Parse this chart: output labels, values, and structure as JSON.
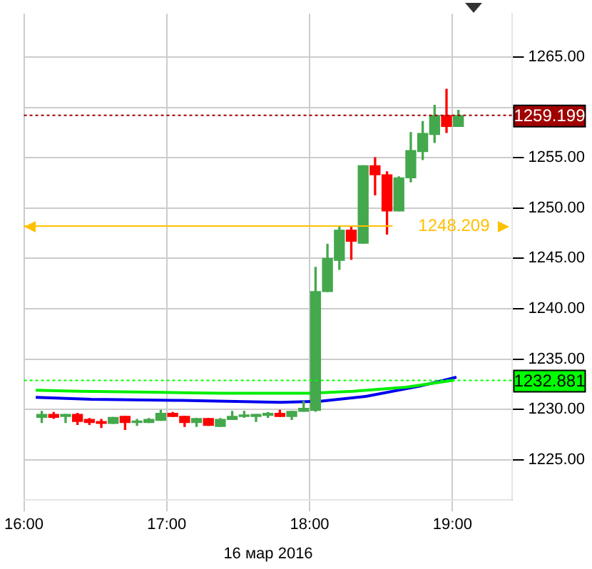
{
  "chart_data": {
    "type": "candlestick",
    "xlabel": "16 мар 2016",
    "x": [
      16.125,
      16.2083,
      16.2917,
      16.375,
      16.4583,
      16.5417,
      16.625,
      16.7083,
      16.7917,
      16.875,
      16.9583,
      17.0417,
      17.125,
      17.2083,
      17.2917,
      17.375,
      17.4583,
      17.5417,
      17.625,
      17.7083,
      17.7917,
      17.875,
      17.9583,
      18.0417,
      18.125,
      18.2083,
      18.2917,
      18.375,
      18.4583,
      18.5417,
      18.625,
      18.7083,
      18.7917,
      18.875,
      18.9583,
      19.0417
    ],
    "ohlc": [
      [
        1229.2,
        1229.8,
        1228.7,
        1229.5
      ],
      [
        1229.5,
        1229.7,
        1229.1,
        1229.2
      ],
      [
        1229.3,
        1229.5,
        1228.7,
        1229.5
      ],
      [
        1229.5,
        1229.6,
        1228.5,
        1228.8
      ],
      [
        1229.0,
        1229.1,
        1228.5,
        1228.7
      ],
      [
        1228.8,
        1229.0,
        1228.2,
        1228.6
      ],
      [
        1228.6,
        1229.2,
        1228.6,
        1229.2
      ],
      [
        1229.3,
        1229.3,
        1228.0,
        1228.7
      ],
      [
        1228.7,
        1229.0,
        1228.4,
        1228.8
      ],
      [
        1228.7,
        1229.1,
        1228.7,
        1229.0
      ],
      [
        1228.9,
        1229.9,
        1228.9,
        1229.6
      ],
      [
        1229.6,
        1229.7,
        1229.3,
        1229.3
      ],
      [
        1229.3,
        1229.3,
        1228.3,
        1228.7
      ],
      [
        1228.7,
        1229.1,
        1228.3,
        1229.1
      ],
      [
        1229.1,
        1229.1,
        1228.4,
        1228.4
      ],
      [
        1228.3,
        1229.1,
        1228.3,
        1229.0
      ],
      [
        1229.0,
        1229.8,
        1229.0,
        1229.3
      ],
      [
        1229.3,
        1229.8,
        1229.2,
        1229.4
      ],
      [
        1229.3,
        1229.5,
        1228.8,
        1229.5
      ],
      [
        1229.4,
        1229.7,
        1229.2,
        1229.6
      ],
      [
        1229.6,
        1229.9,
        1229.3,
        1229.3
      ],
      [
        1229.3,
        1229.8,
        1229.0,
        1229.8
      ],
      [
        1229.8,
        1230.8,
        1229.8,
        1230.1
      ],
      [
        1229.9,
        1244.1,
        1229.8,
        1241.7
      ],
      [
        1241.7,
        1246.4,
        1241.7,
        1245.0
      ],
      [
        1244.8,
        1248.1,
        1243.9,
        1247.8
      ],
      [
        1247.8,
        1248.1,
        1244.9,
        1246.7
      ],
      [
        1246.5,
        1254.2,
        1246.5,
        1254.2
      ],
      [
        1254.2,
        1255.0,
        1251.3,
        1253.3
      ],
      [
        1253.3,
        1253.6,
        1247.4,
        1249.7
      ],
      [
        1249.7,
        1253.1,
        1249.7,
        1253.0
      ],
      [
        1253.0,
        1257.5,
        1252.6,
        1255.7
      ],
      [
        1255.6,
        1258.6,
        1254.8,
        1257.4
      ],
      [
        1257.3,
        1260.2,
        1256.5,
        1259.2
      ],
      [
        1259.2,
        1261.8,
        1257.5,
        1258.1
      ],
      [
        1258.1,
        1259.7,
        1258.1,
        1259.2
      ]
    ],
    "colors": [
      "#44a84c",
      "#ff0000",
      "#44a84c",
      "#ff0000",
      "#ff0000",
      "#ff0000",
      "#44a84c",
      "#ff0000",
      "#44a84c",
      "#44a84c",
      "#44a84c",
      "#ff0000",
      "#ff0000",
      "#44a84c",
      "#ff0000",
      "#44a84c",
      "#44a84c",
      "#44a84c",
      "#44a84c",
      "#44a84c",
      "#ff0000",
      "#44a84c",
      "#44a84c",
      "#44a84c",
      "#44a84c",
      "#44a84c",
      "#ff0000",
      "#44a84c",
      "#ff0000",
      "#ff0000",
      "#44a84c",
      "#44a84c",
      "#44a84c",
      "#44a84c",
      "#ff0000",
      "#44a84c"
    ],
    "series": [
      {
        "type": "line",
        "color": "#00ee00",
        "x": [
          16.083,
          16.389,
          16.889,
          17.38,
          18.0,
          18.306,
          18.676,
          19.009
        ],
        "values": [
          1231.9,
          1231.8,
          1231.7,
          1231.6,
          1231.6,
          1231.8,
          1232.2,
          1232.9
        ]
      },
      {
        "type": "line",
        "color": "#0000ee",
        "x": [
          16.083,
          16.472,
          17.056,
          17.796,
          18.074,
          18.398,
          18.769,
          19.028
        ],
        "values": [
          1231.2,
          1231.0,
          1230.9,
          1230.7,
          1230.8,
          1231.3,
          1232.3,
          1233.2
        ]
      }
    ],
    "ref_lines": [
      {
        "axis": "y",
        "value": 1259.199,
        "label": "1259.199",
        "color": "#a00000",
        "line_style": "dotted"
      },
      {
        "axis": "y",
        "value": 1232.881,
        "label": "1232.881",
        "color": "#00ff00",
        "line_style": "dotted"
      },
      {
        "axis": "y",
        "value": 1248.209,
        "label": "1248.209",
        "color": "#ffc000",
        "line_style": "solid"
      }
    ],
    "xlim": [
      16,
      19.42
    ],
    "xticks": [
      {
        "value": 16,
        "label": "16:00"
      },
      {
        "value": 17,
        "label": "17:00"
      },
      {
        "value": 18,
        "label": "18:00"
      },
      {
        "value": 19,
        "label": "19:00"
      }
    ],
    "ylim": [
      1221,
      1269.3
    ],
    "yticks": [
      {
        "value": 1225,
        "label": "1225.00"
      },
      {
        "value": 1230,
        "label": "1230.00"
      },
      {
        "value": 1235,
        "label": "1235.00"
      },
      {
        "value": 1240,
        "label": "1240.00"
      },
      {
        "value": 1245,
        "label": "1245.00"
      },
      {
        "value": 1250,
        "label": "1250.00"
      },
      {
        "value": 1255,
        "label": "1255.00"
      },
      {
        "value": 1260,
        "label": null
      },
      {
        "value": 1265,
        "label": "1265.00"
      }
    ],
    "grid": true,
    "legend": false
  }
}
